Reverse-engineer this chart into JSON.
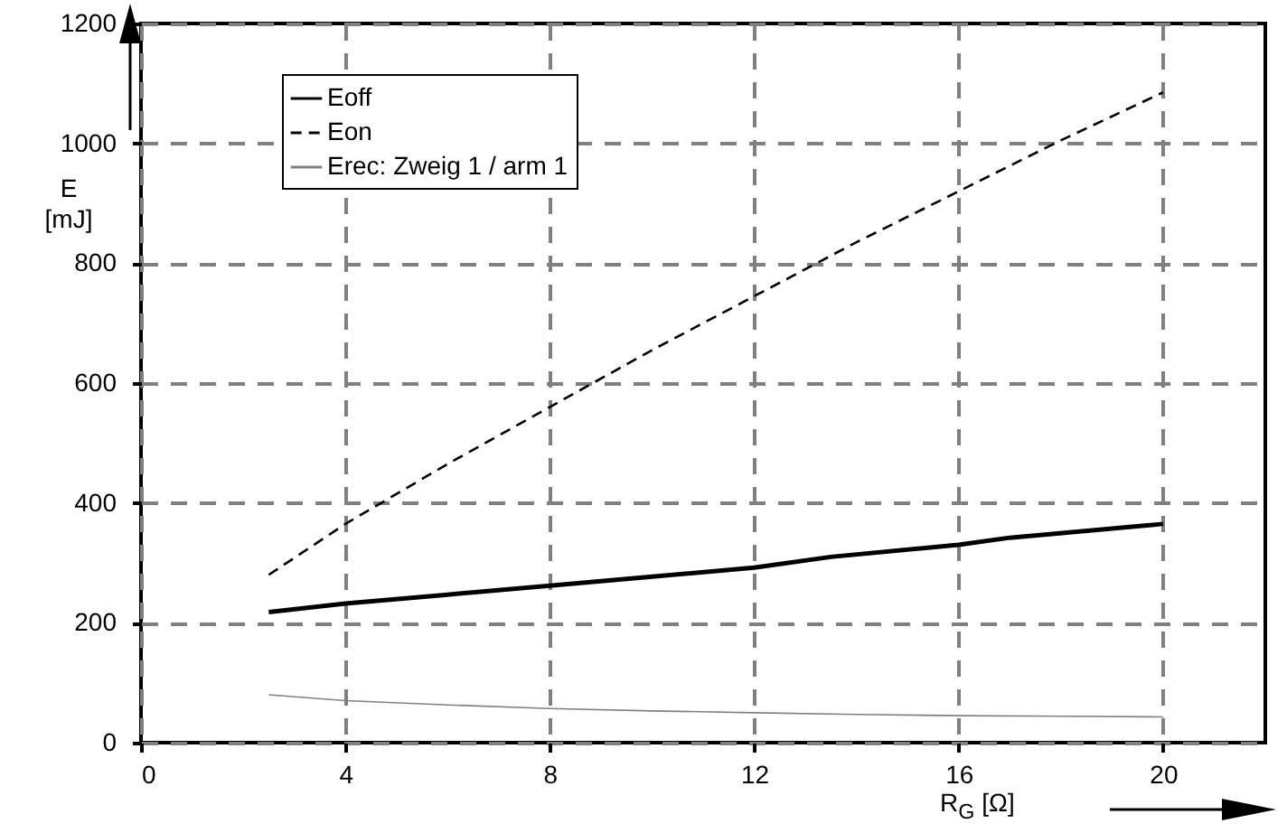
{
  "chart_data": {
    "type": "line",
    "xlabel": "R$_{G}$ [Ω]",
    "ylabel": "E [mJ]",
    "xlim": [
      0,
      22
    ],
    "ylim": [
      0,
      1200
    ],
    "xticks": [
      0,
      4,
      8,
      12,
      16,
      20
    ],
    "yticks": [
      0,
      200,
      400,
      600,
      800,
      1000,
      1200
    ],
    "grid": true,
    "legend": "top left",
    "marker": "none",
    "series": [
      {
        "name": "Eoff",
        "color": "#000000",
        "line_style": "solid",
        "x": [
          2.5,
          4,
          6,
          8,
          10,
          12,
          13.5,
          16,
          17,
          20
        ],
        "values": [
          218,
          232,
          247,
          262,
          277,
          292,
          310,
          330,
          342,
          365
        ]
      },
      {
        "name": "Eon",
        "color": "#000000",
        "line_style": "dashed",
        "x": [
          2.5,
          4,
          6,
          8,
          10,
          12,
          14,
          16,
          18,
          20
        ],
        "values": [
          280,
          365,
          465,
          560,
          655,
          745,
          835,
          920,
          1005,
          1085
        ]
      },
      {
        "name": "Erec: Zweig 1 / arm 1",
        "color": "#808080",
        "line_style": "solid",
        "x": [
          2.5,
          4,
          6,
          8,
          10,
          12,
          14,
          16,
          18,
          20
        ],
        "values": [
          80,
          70,
          63,
          57,
          53,
          50,
          47,
          45,
          44,
          43
        ]
      }
    ]
  }
}
